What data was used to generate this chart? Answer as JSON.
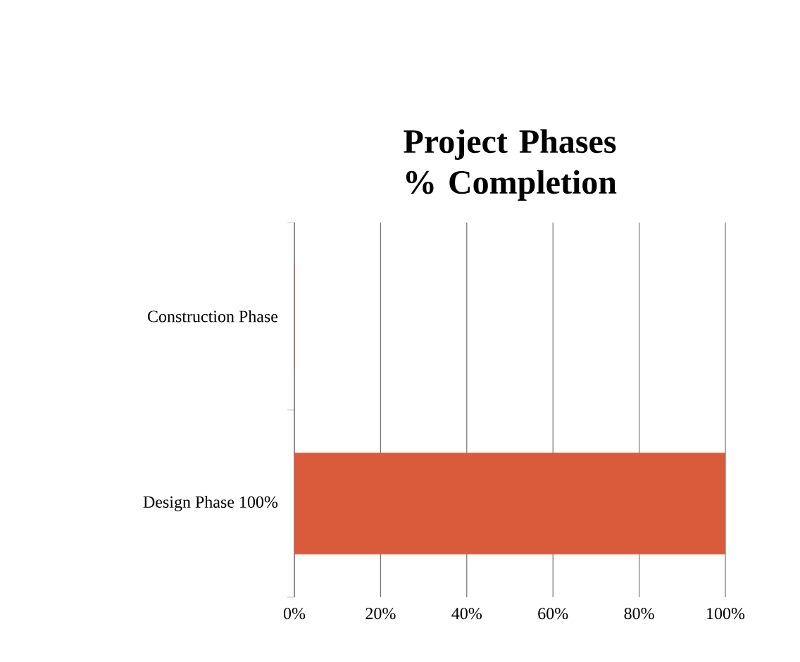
{
  "chart_data": {
    "type": "bar",
    "orientation": "horizontal",
    "title": "Project Phases % Completion",
    "categories": [
      "Construction Phase",
      "Design Phase 100%"
    ],
    "values": [
      0,
      100
    ],
    "color": "#d95b3c",
    "xlim": [
      0,
      100
    ],
    "xticks": [
      {
        "value": 0,
        "label": "0%"
      },
      {
        "value": 20,
        "label": "20%"
      },
      {
        "value": 40,
        "label": "40%"
      },
      {
        "value": 60,
        "label": "60%"
      },
      {
        "value": 80,
        "label": "80%"
      },
      {
        "value": 100,
        "label": "100%"
      }
    ],
    "grid": "x"
  }
}
